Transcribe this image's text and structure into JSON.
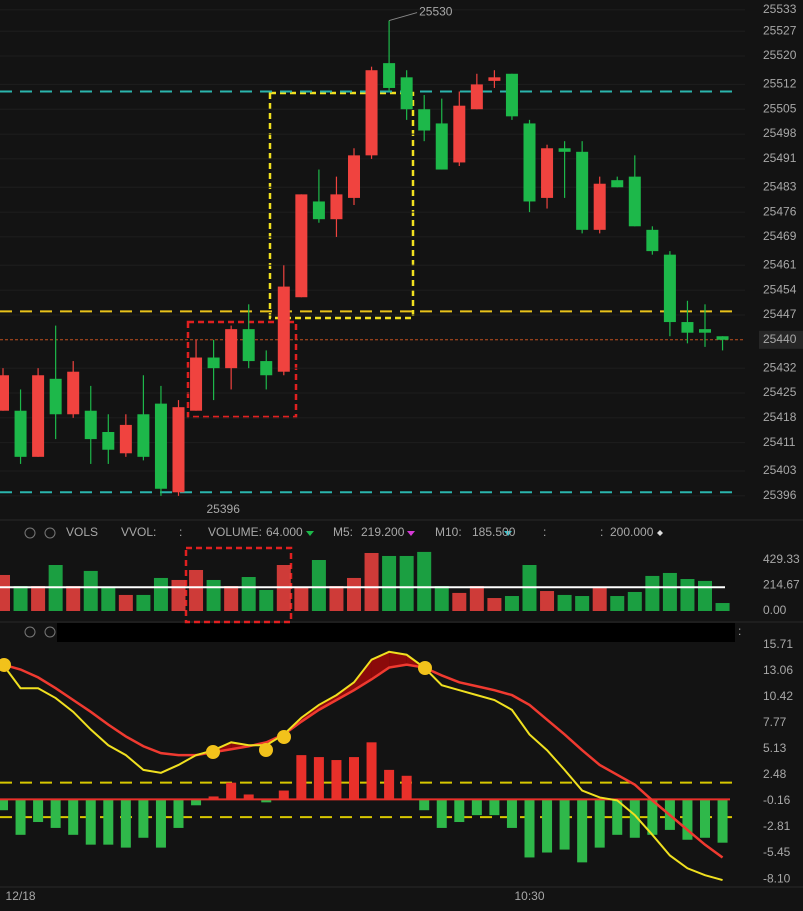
{
  "chart_data": [
    {
      "type": "candlestick",
      "categories": [
        null,
        "12/18",
        null,
        null,
        null,
        null,
        null,
        null,
        null,
        null,
        null,
        null,
        null,
        null,
        null,
        null,
        null,
        null,
        null,
        null,
        null,
        null,
        null,
        null,
        null,
        null,
        null,
        null,
        null,
        null,
        "10:30",
        null,
        null,
        null,
        null,
        null,
        null,
        null,
        null,
        null,
        null,
        null
      ],
      "open": [
        25420,
        25420,
        25407,
        25429,
        25419,
        25420,
        25414,
        25408,
        25419,
        25422,
        25397,
        25420,
        25435,
        25432,
        25443,
        25434,
        25431,
        25452,
        25479,
        25474,
        25480,
        25492,
        25518,
        25514,
        25505,
        25501,
        25490,
        25505,
        25513,
        25515,
        25501,
        25480,
        25494,
        25493,
        25471,
        25485,
        25486,
        25471,
        25464,
        25445,
        25443,
        25441
      ],
      "high": [
        25432,
        25426,
        25432,
        25444,
        25434,
        25427,
        25419,
        25419,
        25430,
        25427,
        25423,
        25440,
        25440,
        25444,
        25450,
        25437,
        25461,
        25481,
        25488,
        25486,
        25494,
        25517,
        25530,
        25516,
        25509,
        25508,
        25510,
        25515,
        25516,
        25515,
        25502,
        25495,
        25496,
        25496,
        25486,
        25486,
        25492,
        25472,
        25465,
        25451,
        25450,
        25441
      ],
      "low": [
        25420,
        25405,
        25407,
        25412,
        25418,
        25405,
        25405,
        25407,
        25406,
        25396,
        25396,
        25420,
        25423,
        25426,
        25432,
        25426,
        25430,
        25452,
        25473,
        25469,
        25478,
        25491,
        25510,
        25502,
        25496,
        25488,
        25489,
        25505,
        25511,
        25502,
        25476,
        25477,
        25480,
        25470,
        25470,
        25483,
        25472,
        25464,
        25441,
        25439,
        25438,
        25437
      ],
      "close": [
        25430,
        25407,
        25430,
        25419,
        25431,
        25412,
        25409,
        25416,
        25407,
        25398,
        25421,
        25435,
        25432,
        25443,
        25434,
        25430,
        25455,
        25481,
        25474,
        25481,
        25492,
        25516,
        25511,
        25505,
        25499,
        25488,
        25506,
        25512,
        25514,
        25503,
        25479,
        25494,
        25493,
        25471,
        25484,
        25483,
        25472,
        25465,
        25445,
        25442,
        25442,
        25440
      ],
      "up_color": "#f0433f",
      "down_color": "#1db84a",
      "ylim": [
        25390.6,
        25535.8
      ],
      "yticks": [
        25533,
        25527,
        25520,
        25512,
        25505,
        25498,
        25491,
        25483,
        25476,
        25469,
        25461,
        25454,
        25447,
        25432,
        25425,
        25418,
        25411,
        25403,
        25396
      ],
      "last_price": 25440,
      "annotations": [
        {
          "index": 22,
          "value": 25530,
          "side": "high"
        },
        {
          "index": 10,
          "value": 25396,
          "side": "low"
        }
      ],
      "levels": [
        {
          "value": 25510,
          "color": "#2bb5ad"
        },
        {
          "value": 25397,
          "color": "#2bb5ad"
        },
        {
          "value": 25448,
          "color": "#e8c21a"
        }
      ]
    },
    {
      "type": "volume",
      "header": [
        {
          "text": "VOLS",
          "color": "#e0e0e0"
        },
        {
          "text": "VVOL:",
          "color": "#8c86d8"
        },
        {
          "text": ":",
          "color": "#e8c21a"
        },
        {
          "text": "VOLUME:",
          "color": "#8c86e8"
        },
        {
          "text": "64.000",
          "color": "#8c86e8"
        },
        {
          "text": "M5:",
          "color": "#d63ad6"
        },
        {
          "text": "219.200",
          "color": "#d63ad6"
        },
        {
          "text": "M10:",
          "color": "#33c2cc"
        },
        {
          "text": "185.500",
          "color": "#33c2cc"
        },
        {
          "text": ":",
          "color": "#e84040"
        },
        {
          "text": ":",
          "color": "#e8c21a"
        },
        {
          "text": "200.000",
          "color": "#ffffff"
        }
      ],
      "values": [
        303,
        210,
        210,
        387,
        210,
        337,
        194,
        135,
        135,
        278,
        261,
        345,
        261,
        210,
        286,
        177,
        387,
        202,
        429,
        210,
        278,
        488,
        463,
        463,
        497,
        210,
        152,
        210,
        109,
        126,
        387,
        168,
        135,
        126,
        194,
        126,
        160,
        295,
        320,
        269,
        253,
        67
      ],
      "ylim": [
        0,
        530
      ],
      "yticks": [
        429.33,
        214.67,
        {
          "value": 0,
          "label": "0.00"
        }
      ],
      "threshold": 200,
      "threshold_color": "#ffffff"
    },
    {
      "type": "macd",
      "header": ":",
      "series": [
        {
          "color": "#f03a30",
          "values": [
            13.7,
            13.2,
            12.4,
            11.3,
            10.1,
            8.9,
            7.6,
            6.4,
            5.4,
            4.7,
            4.5,
            4.5,
            4.8,
            5.1,
            5.4,
            5.8,
            6.6,
            7.9,
            9.1,
            10.1,
            11.1,
            12.2,
            13.4,
            13.7,
            13.4,
            12.6,
            11.9,
            11.5,
            11.1,
            10.6,
            9.6,
            8.1,
            6.6,
            5.0,
            3.5,
            2.5,
            1.5,
            -0.1,
            -1.6,
            -3.1,
            -4.6,
            -5.9
          ]
        },
        {
          "color": "#f0e020",
          "values": [
            13.7,
            11.3,
            11.3,
            10.3,
            8.9,
            7.1,
            5.5,
            4.5,
            3.0,
            2.7,
            3.5,
            4.5,
            5.0,
            5.8,
            5.5,
            5.5,
            6.6,
            8.3,
            9.6,
            10.6,
            11.9,
            14.2,
            15.0,
            14.7,
            13.4,
            11.6,
            11.1,
            10.6,
            10.1,
            9.1,
            6.6,
            5.0,
            3.0,
            0.9,
            0.2,
            -0.1,
            -1.6,
            -3.6,
            -5.7,
            -7.0,
            -7.7,
            -8.2
          ]
        }
      ],
      "histogram": [
        -1.1,
        -3.6,
        -2.3,
        -2.9,
        -3.6,
        -4.6,
        -4.6,
        -4.9,
        -3.9,
        -4.9,
        -2.9,
        -0.6,
        0.3,
        1.7,
        0.5,
        -0.3,
        0.9,
        4.5,
        4.3,
        4.0,
        4.3,
        5.8,
        3.0,
        2.4,
        -1.1,
        -2.9,
        -2.3,
        -1.6,
        -1.6,
        -2.9,
        -5.9,
        -5.4,
        -5.1,
        -6.4,
        -4.9,
        -3.6,
        -3.9,
        -3.6,
        -3.1,
        -4.1,
        -3.9,
        -4.4
      ],
      "ylim": [
        -8.7,
        16.2
      ],
      "yticks": [
        15.71,
        13.06,
        10.42,
        7.77,
        5.13,
        2.48,
        -0.16,
        -2.81,
        -5.45,
        {
          "value": -8.1,
          "label": "-8.10"
        }
      ],
      "levels": [
        {
          "value": 1.7,
          "color": "#d8c800"
        },
        {
          "value": -1.8,
          "color": "#d8c800"
        }
      ]
    }
  ]
}
